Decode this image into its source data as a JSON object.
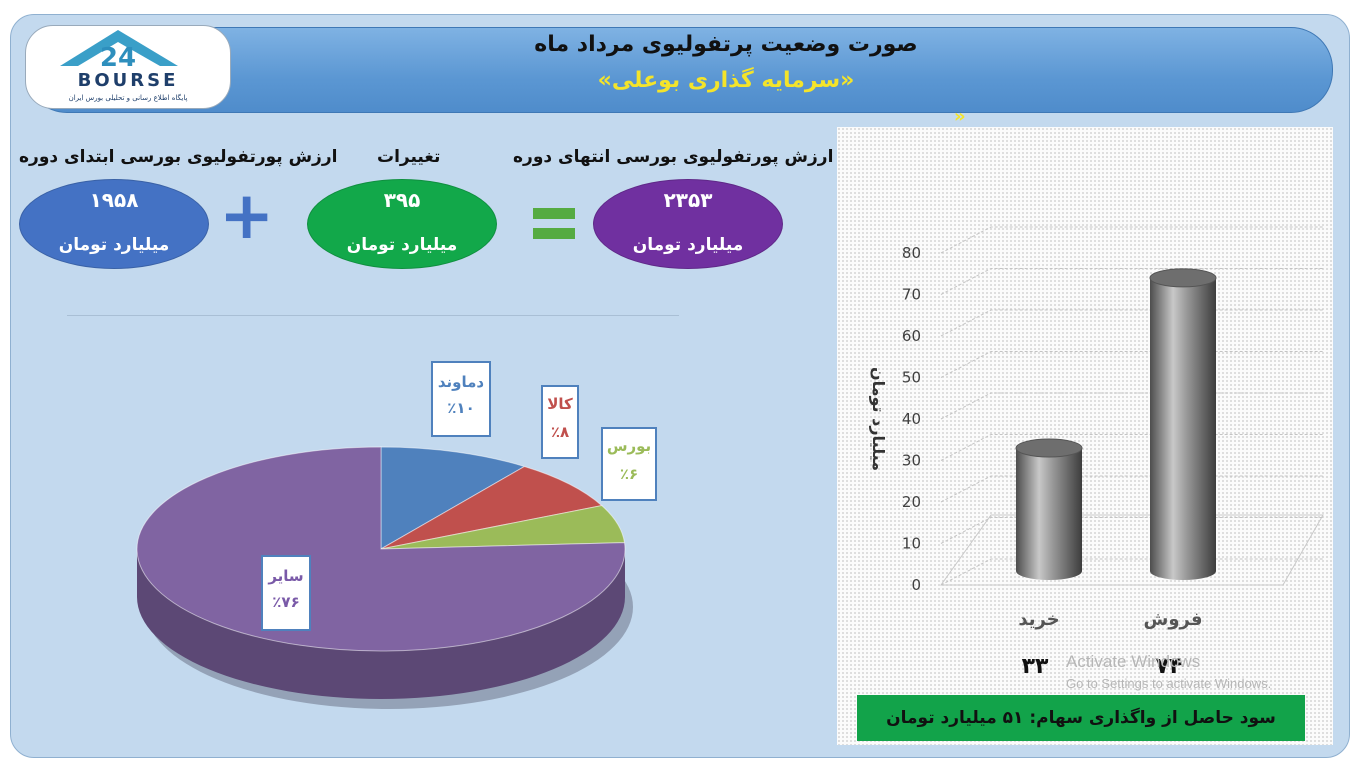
{
  "header": {
    "title": "صورت وضعیت پرتفولیوی مرداد ماه",
    "subtitle": "«سرمایه گذاری بوعلی»",
    "trailing_quote": "»"
  },
  "logo": {
    "number": "24",
    "brand": "BOURSE",
    "tagline": "پایگاه اطلاع رسانی و تحلیلی بورس ایران"
  },
  "summary": {
    "start": {
      "label": "ارزش پورتفولیوی بورسی ابتدای دوره",
      "value": "۱۹۵۸",
      "unit": "میلیارد تومان",
      "color": "#4472c4"
    },
    "change": {
      "label": "تغییرات",
      "value": "۳۹۵",
      "unit": "میلیارد تومان",
      "color": "#12a84a"
    },
    "end": {
      "label": "ارزش پورتفولیوی بورسی انتهای دوره",
      "value": "۲۳۵۳",
      "unit": "میلیارد تومان",
      "color": "#7030a0"
    },
    "plus_symbol": "+",
    "equals_symbol": "="
  },
  "chart_data": [
    {
      "type": "pie",
      "slices": [
        {
          "label": "دماوند",
          "value": 10,
          "display": "٪۱۰",
          "color": "#4f81bd"
        },
        {
          "label": "کالا",
          "value": 8,
          "display": "٪۸",
          "color": "#c0504d"
        },
        {
          "label": "بورس",
          "value": 6,
          "display": "٪۶",
          "color": "#9bbb59"
        },
        {
          "label": "سایر",
          "value": 76,
          "display": "٪۷۶",
          "color": "#8064a2"
        }
      ],
      "label_colors": {
        "دماوند": "#4f81bd",
        "کالا": "#c0504d",
        "بورس": "#9bbb59",
        "سایر": "#7a5aa8"
      }
    },
    {
      "type": "bar",
      "categories": [
        "خرید",
        "فروش"
      ],
      "values": [
        33,
        74
      ],
      "value_labels": [
        "۳۳",
        "۷۴"
      ],
      "ylabel": "میلیارد تومان",
      "ylim": [
        0,
        80
      ],
      "yticks": [
        0,
        10,
        20,
        30,
        40,
        50,
        60,
        70,
        80
      ],
      "grid": true,
      "color": "#8c8c8c"
    }
  ],
  "profit": {
    "text": "سود حاصل از واگذاری سهام: ۵۱ میلیارد تومان"
  },
  "watermark": {
    "line1": "Activate Windows",
    "line2": "Go to Settings to activate Windows."
  }
}
